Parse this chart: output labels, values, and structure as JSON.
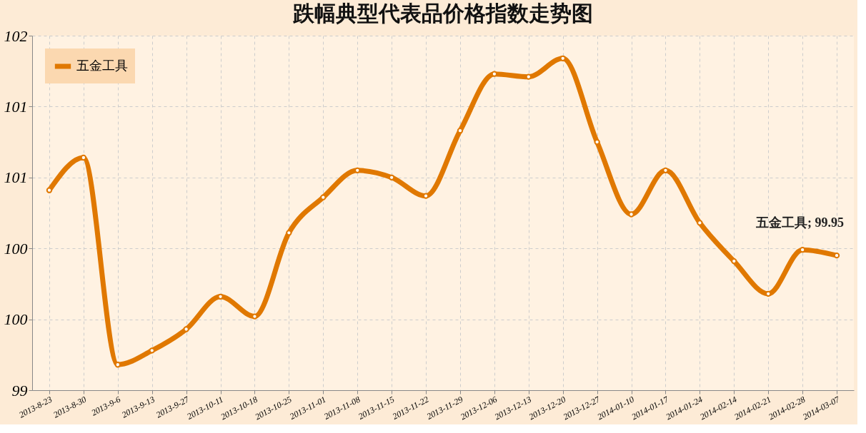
{
  "chart_data": {
    "type": "line",
    "title": "跌幅典型代表品价格指数走势图",
    "categories": [
      "2013-8-23",
      "2013-8-30",
      "2013-9-6",
      "2013-9-13",
      "2013-9-27",
      "2013-10-11",
      "2013-10-18",
      "2013-10-25",
      "2013-11-01",
      "2013-11-08",
      "2013-11-15",
      "2013-11-22",
      "2013-11-29",
      "2013-12-06",
      "2013-12-13",
      "2013-12-20",
      "2013-12-27",
      "2014-01-10",
      "2014-01-17",
      "2014-01-24",
      "2014-02-14",
      "2014-02-21",
      "2014-02-28",
      "2014-03-07"
    ],
    "series": [
      {
        "name": "五金工具",
        "color": "#e07800",
        "values": [
          100.41,
          100.64,
          99.18,
          99.28,
          99.43,
          99.66,
          99.52,
          100.11,
          100.36,
          100.55,
          100.5,
          100.37,
          100.83,
          101.23,
          101.21,
          101.34,
          100.75,
          100.24,
          100.55,
          100.18,
          99.91,
          99.68,
          99.99,
          99.95
        ]
      }
    ],
    "ylim": [
      99,
      101.5
    ],
    "yticks": [
      99,
      {
        "value": 99.5,
        "label": "100"
      },
      100,
      {
        "value": 100.5,
        "label": "101"
      },
      101,
      {
        "value": 101.5,
        "label": "102"
      }
    ],
    "annotations": [
      {
        "text": "五金工具; 99.95",
        "x": "2014-03-07",
        "y": 99.95
      }
    ],
    "grid": true,
    "legend": "top left",
    "marker": "circle",
    "line_style": "solid"
  }
}
